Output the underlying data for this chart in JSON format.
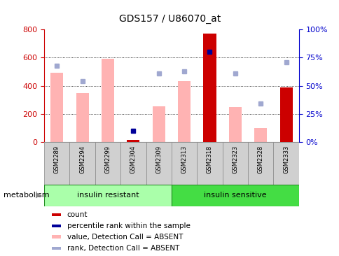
{
  "title": "GDS157 / U86070_at",
  "samples": [
    "GSM2289",
    "GSM2294",
    "GSM2299",
    "GSM2304",
    "GSM2309",
    "GSM2313",
    "GSM2318",
    "GSM2323",
    "GSM2328",
    "GSM2333"
  ],
  "value_absent_bars": [
    490,
    350,
    590,
    null,
    255,
    435,
    null,
    248,
    100,
    null
  ],
  "count_bars": [
    null,
    null,
    null,
    15,
    null,
    null,
    770,
    null,
    null,
    390
  ],
  "rank_dots_pct": [
    null,
    null,
    null,
    10,
    null,
    null,
    80,
    null,
    null,
    null
  ],
  "rank_absent_dots_pct": [
    68,
    54,
    null,
    null,
    61,
    63,
    null,
    61,
    34,
    71
  ],
  "count_color": "#cc0000",
  "rank_dot_color": "#000099",
  "absent_bar_color": "#ffb3b3",
  "rank_absent_dot_color": "#a0a8d0",
  "left_axis_color": "#cc0000",
  "right_axis_color": "#0000cc",
  "ylim_left": [
    0,
    800
  ],
  "ylim_right": [
    0,
    100
  ],
  "yticks_left": [
    0,
    200,
    400,
    600,
    800
  ],
  "yticks_right": [
    0,
    25,
    50,
    75,
    100
  ],
  "ytick_labels_right": [
    "0%",
    "25%",
    "50%",
    "75%",
    "100%"
  ],
  "grid_vals": [
    200,
    400,
    600
  ],
  "group1_label": "insulin resistant",
  "group1_color": "#aaffaa",
  "group2_label": "insulin sensitive",
  "group2_color": "#44dd44",
  "group_label": "metabolism",
  "legend_labels": [
    "count",
    "percentile rank within the sample",
    "value, Detection Call = ABSENT",
    "rank, Detection Call = ABSENT"
  ],
  "legend_colors": [
    "#cc0000",
    "#000099",
    "#ffb3b3",
    "#a0a8d0"
  ],
  "bar_width": 0.5
}
